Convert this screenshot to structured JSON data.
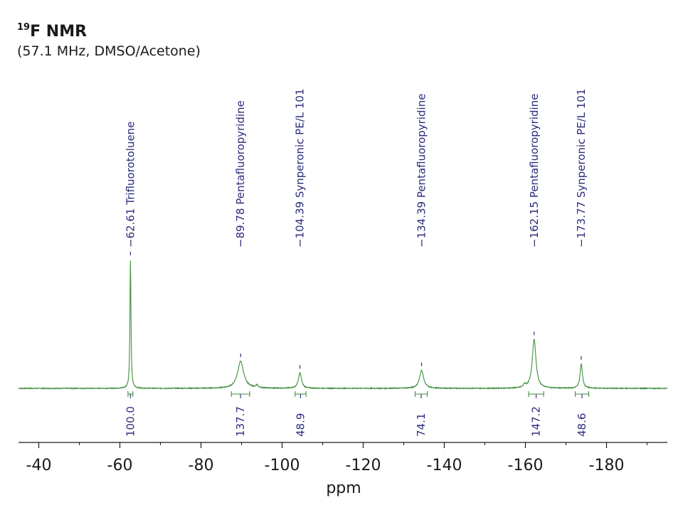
{
  "title": {
    "nucleus_mass": "19",
    "main": "F NMR",
    "subtitle": "(57.1 MHz, DMSO/Acetone)"
  },
  "colors": {
    "spectrum": "#3f8f3f",
    "labels": "#2b2d7c",
    "axis": "#1a1a1a"
  },
  "chart_data": {
    "type": "line",
    "xlabel": "ppm",
    "xlim": [
      -35,
      -195
    ],
    "x_reversed": true,
    "ticks": [
      {
        "value": -40,
        "label": "-40"
      },
      {
        "value": -60,
        "label": "-60"
      },
      {
        "value": -80,
        "label": "-80"
      },
      {
        "value": -100,
        "label": "-100"
      },
      {
        "value": -120,
        "label": "-120"
      },
      {
        "value": -140,
        "label": "-140"
      },
      {
        "value": -160,
        "label": "-160"
      },
      {
        "value": -180,
        "label": "-180"
      }
    ],
    "minor_tick_step": 10,
    "baseline": 0,
    "ylim": [
      -5,
      100
    ],
    "peaks": [
      {
        "shift": -62.61,
        "label": "−62.61 Trifluorotoluene",
        "height": 100,
        "width": 0.15
      },
      {
        "shift": -89.78,
        "label": "−89.78 Pentafluoropyridine",
        "height": 21,
        "width": 0.9
      },
      {
        "shift": -104.39,
        "label": "−104.39 Synperonic PE/L 101",
        "height": 12,
        "width": 0.45
      },
      {
        "shift": -134.39,
        "label": "−134.39 Pentafluoropyridine",
        "height": 14,
        "width": 0.6
      },
      {
        "shift": -162.15,
        "label": "−162.15 Pentafluoropyridine",
        "height": 38,
        "width": 0.55
      },
      {
        "shift": -173.77,
        "label": "−173.77 Synperonic PE/L 101",
        "height": 19,
        "width": 0.35
      }
    ],
    "minor_peaks": [
      {
        "shift": -93.8,
        "height": 2
      },
      {
        "shift": -159.8,
        "height": 2.5
      }
    ],
    "integrals": [
      {
        "from": -62.0,
        "to": -63.2,
        "value": "100.0"
      },
      {
        "from": -87.5,
        "to": -92.0,
        "value": "137.7"
      },
      {
        "from": -103.2,
        "to": -105.9,
        "value": "48.9"
      },
      {
        "from": -132.8,
        "to": -135.8,
        "value": "74.1"
      },
      {
        "from": -160.8,
        "to": -164.5,
        "value": "147.2"
      },
      {
        "from": -172.3,
        "to": -175.6,
        "value": "48.6"
      }
    ]
  }
}
